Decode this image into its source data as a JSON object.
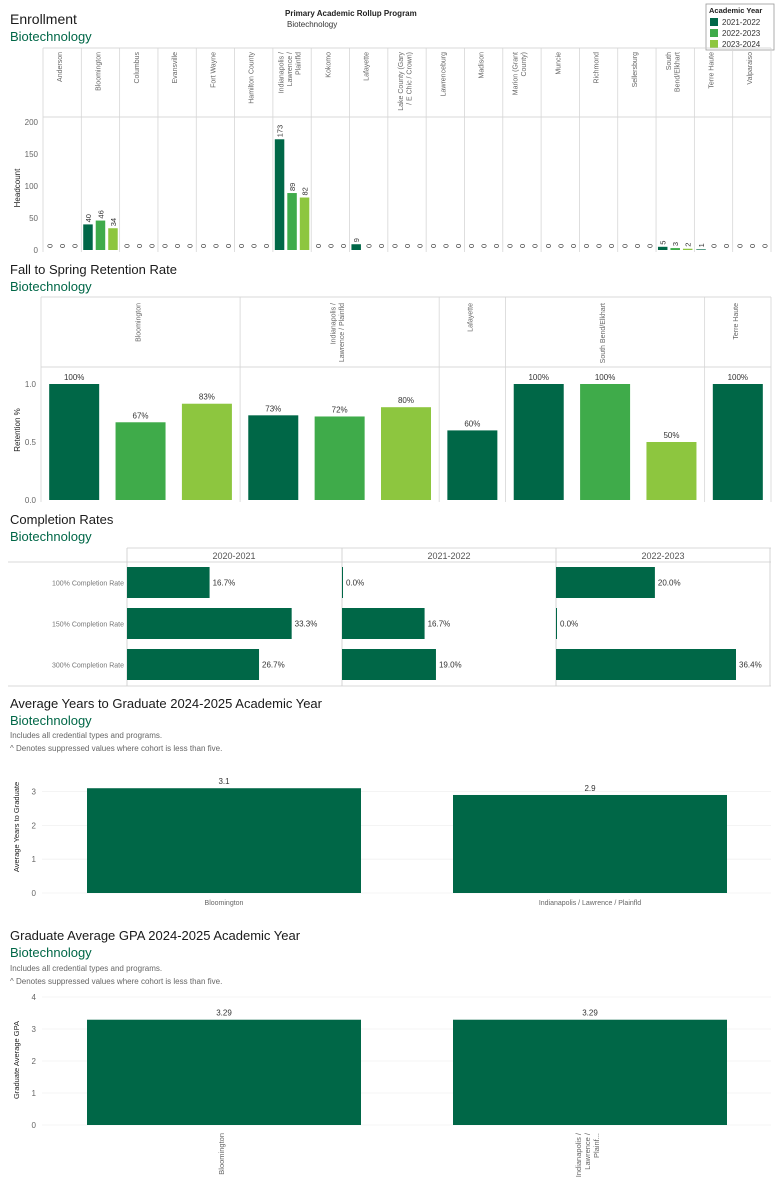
{
  "colors": {
    "series1": "#006747",
    "series2": "#3fab4a",
    "series3": "#8dc63f",
    "subtitle": "#006747",
    "grid": "#d9d9d9"
  },
  "enrollment": {
    "title": "Enrollment",
    "subtitle": "Biotechnology",
    "filter_label": "Primary Academic Rollup Program",
    "filter_value": "Biotechnology",
    "legend_title": "Academic Year",
    "y_label": "Headcount",
    "chart_data": {
      "type": "bar",
      "title": "Enrollment",
      "ylabel": "Headcount",
      "ylim": [
        0,
        200
      ],
      "yticks": [
        "200",
        "150",
        "100",
        "50",
        "0"
      ],
      "categories": [
        "Anderson",
        "Bloomington",
        "Columbus",
        "Evansville",
        "Fort Wayne",
        "Hamilton County",
        "Indianapolis / Lawrence / Plainfld",
        "Kokomo",
        "Lafayette",
        "Lake County (Gary / E Chic / Crown)",
        "Lawrenceburg",
        "Madison",
        "Marion (Grant County)",
        "Muncie",
        "Richmond",
        "Sellersburg",
        "South Bend/Elkhart",
        "Terre Haute",
        "Valparaiso"
      ],
      "series": [
        {
          "name": "2021-2022",
          "values": [
            0,
            40,
            0,
            0,
            0,
            0,
            173,
            0,
            9,
            0,
            0,
            0,
            0,
            0,
            0,
            0,
            5,
            1,
            0
          ]
        },
        {
          "name": "2022-2023",
          "values": [
            0,
            46,
            0,
            0,
            0,
            0,
            89,
            0,
            0,
            0,
            0,
            0,
            0,
            0,
            0,
            0,
            3,
            0,
            0
          ]
        },
        {
          "name": "2023-2024",
          "values": [
            0,
            34,
            0,
            0,
            0,
            0,
            82,
            0,
            0,
            0,
            0,
            0,
            0,
            0,
            0,
            0,
            2,
            0,
            0
          ]
        }
      ]
    }
  },
  "retention": {
    "title": "Fall to Spring Retention Rate",
    "subtitle": "Biotechnology",
    "y_label": "Retention %",
    "chart_data": {
      "type": "bar",
      "title": "Fall to Spring Retention Rate",
      "ylabel": "Retention %",
      "ylim": [
        0,
        1
      ],
      "yticks": [
        "1.0",
        "0.5",
        "0.0"
      ],
      "groups": [
        {
          "name": "Bloomington",
          "bars": [
            {
              "series": 0,
              "value": 1.0,
              "label": "100%"
            },
            {
              "series": 1,
              "value": 0.67,
              "label": "67%"
            },
            {
              "series": 2,
              "value": 0.83,
              "label": "83%"
            }
          ]
        },
        {
          "name": "Indianapolis / Lawrence / Plainfld",
          "bars": [
            {
              "series": 0,
              "value": 0.73,
              "label": "73%"
            },
            {
              "series": 1,
              "value": 0.72,
              "label": "72%"
            },
            {
              "series": 2,
              "value": 0.8,
              "label": "80%"
            }
          ]
        },
        {
          "name": "Lafayette",
          "bars": [
            {
              "series": 0,
              "value": 0.6,
              "label": "60%"
            }
          ]
        },
        {
          "name": "South Bend/Elkhart",
          "bars": [
            {
              "series": 0,
              "value": 1.0,
              "label": "100%"
            },
            {
              "series": 1,
              "value": 1.0,
              "label": "100%"
            },
            {
              "series": 2,
              "value": 0.5,
              "label": "50%"
            }
          ]
        },
        {
          "name": "Terre Haute",
          "bars": [
            {
              "series": 0,
              "value": 1.0,
              "label": "100%"
            }
          ]
        }
      ]
    }
  },
  "completion": {
    "title": "Completion Rates",
    "subtitle": "Biotechnology",
    "chart_data": {
      "type": "bar",
      "title": "Completion Rates",
      "columns": [
        "2020-2021",
        "2021-2022",
        "2022-2023"
      ],
      "rows": [
        "100% Completion Rate",
        "150% Completion Rate",
        "300% Completion Rate"
      ],
      "values": [
        [
          0.167,
          0.0,
          0.2
        ],
        [
          0.333,
          0.167,
          0.0
        ],
        [
          0.267,
          0.19,
          0.364
        ]
      ],
      "labels": [
        [
          "16.7%",
          "0.0%",
          "20.0%"
        ],
        [
          "33.3%",
          "16.7%",
          "0.0%"
        ],
        [
          "26.7%",
          "19.0%",
          "36.4%"
        ]
      ]
    }
  },
  "years_to_grad": {
    "title": "Average Years to Graduate 2024-2025 Academic Year",
    "subtitle": "Biotechnology",
    "note1": "Includes all credential types and programs.",
    "note2": "^ Denotes suppressed values where cohort is less than five.",
    "y_label": "Average Years to Graduate",
    "chart_data": {
      "type": "bar",
      "ylabel": "Average Years to Graduate",
      "ylim": [
        0,
        3.3
      ],
      "yticks": [
        "3",
        "2",
        "1",
        "0"
      ],
      "categories": [
        "Bloomington",
        "Indianapolis / Lawrence / Plainfld"
      ],
      "values": [
        3.1,
        2.9
      ],
      "labels": [
        "3.1",
        "2.9"
      ]
    }
  },
  "gpa": {
    "title": "Graduate Average GPA 2024-2025 Academic Year",
    "subtitle": "Biotechnology",
    "note1": "Includes all credential types and programs.",
    "note2": "^ Denotes suppressed values where cohort is less than five.",
    "y_label": "Graduate Average GPA",
    "chart_data": {
      "type": "bar",
      "ylabel": "Graduate Average GPA",
      "ylim": [
        0,
        4
      ],
      "yticks": [
        "4",
        "3",
        "2",
        "1",
        "0"
      ],
      "categories": [
        "Bloomington",
        "Indianapolis / Lawrence / Plainf..."
      ],
      "values": [
        3.29,
        3.29
      ],
      "labels": [
        "3.29",
        "3.29"
      ]
    }
  }
}
